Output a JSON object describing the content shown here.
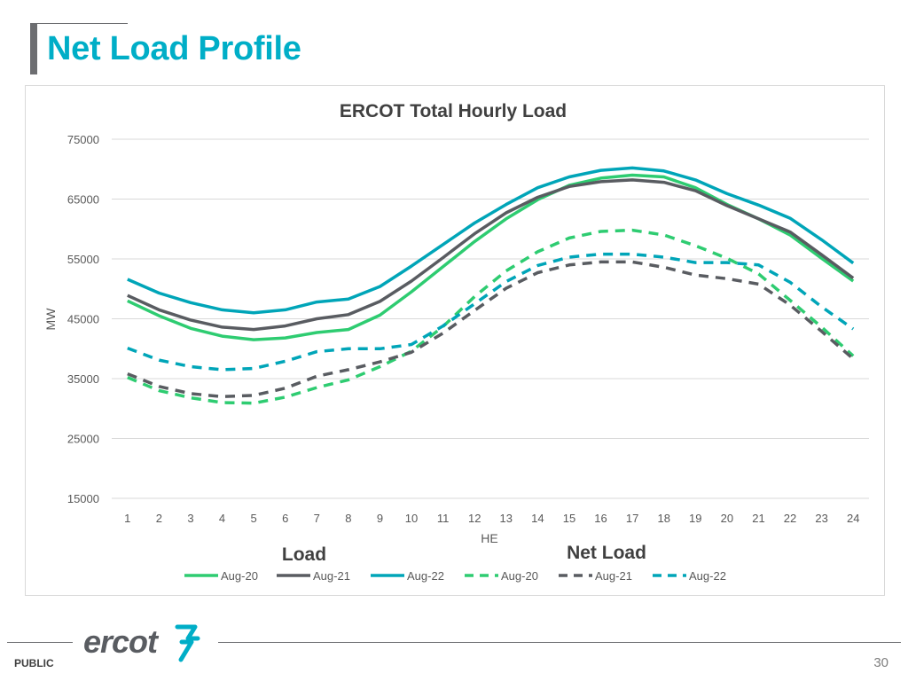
{
  "slide": {
    "title": "Net Load Profile",
    "footer_label": "PUBLIC",
    "page_number": "30",
    "logo_text": "ercot",
    "accent_color": "#00aec7"
  },
  "chart_data": {
    "type": "line",
    "title": "ERCOT Total Hourly Load",
    "xlabel": "HE",
    "ylabel": "MW",
    "ylim": [
      15000,
      75000
    ],
    "yticks": [
      15000,
      25000,
      35000,
      45000,
      55000,
      65000,
      75000
    ],
    "grid": true,
    "legend_position": "bottom",
    "legend_group_labels": {
      "load": "Load",
      "net_load": "Net Load"
    },
    "x": [
      1,
      2,
      3,
      4,
      5,
      6,
      7,
      8,
      9,
      10,
      11,
      12,
      13,
      14,
      15,
      16,
      17,
      18,
      19,
      20,
      21,
      22,
      23,
      24
    ],
    "series": [
      {
        "name": "Aug-20",
        "group": "Load",
        "style": "solid",
        "color": "#2ecc71",
        "values": [
          48000,
          45500,
          43400,
          42100,
          41500,
          41800,
          42700,
          43200,
          45600,
          49500,
          53700,
          57900,
          61700,
          64900,
          67300,
          68500,
          69000,
          68700,
          66900,
          64100,
          61700,
          59000,
          55100,
          51300
        ]
      },
      {
        "name": "Aug-21",
        "group": "Load",
        "style": "solid",
        "color": "#595c61",
        "values": [
          48900,
          46500,
          44800,
          43600,
          43200,
          43800,
          45000,
          45700,
          47900,
          51300,
          55200,
          59200,
          62700,
          65300,
          67100,
          67900,
          68200,
          67800,
          66400,
          63900,
          61700,
          59500,
          55700,
          51800
        ]
      },
      {
        "name": "Aug-22",
        "group": "Load",
        "style": "solid",
        "color": "#00a5b8",
        "values": [
          51600,
          49300,
          47700,
          46500,
          46000,
          46500,
          47800,
          48300,
          50400,
          53800,
          57400,
          61000,
          64100,
          66900,
          68700,
          69800,
          70200,
          69700,
          68200,
          65900,
          64000,
          61800,
          58200,
          54300
        ]
      },
      {
        "name": "Aug-20",
        "group": "Net Load",
        "style": "dashed",
        "color": "#2ecc71",
        "values": [
          35200,
          33000,
          31800,
          31000,
          30900,
          31900,
          33500,
          34800,
          37000,
          39600,
          43700,
          48700,
          53000,
          56200,
          58500,
          59600,
          59800,
          59000,
          57200,
          55100,
          52500,
          48100,
          43600,
          38800
        ]
      },
      {
        "name": "Aug-21",
        "group": "Net Load",
        "style": "dashed",
        "color": "#595c61",
        "values": [
          35800,
          33700,
          32500,
          32000,
          32200,
          33400,
          35400,
          36500,
          37800,
          39400,
          42600,
          46400,
          50100,
          52700,
          54000,
          54500,
          54500,
          53600,
          52300,
          51700,
          50800,
          47300,
          42900,
          38300
        ]
      },
      {
        "name": "Aug-22",
        "group": "Net Load",
        "style": "dashed",
        "color": "#00a5b8",
        "values": [
          40100,
          38100,
          37000,
          36500,
          36700,
          37900,
          39500,
          40000,
          40000,
          40700,
          43800,
          47500,
          51200,
          53900,
          55300,
          55800,
          55800,
          55300,
          54400,
          54400,
          54000,
          51100,
          47000,
          43300
        ]
      }
    ]
  }
}
